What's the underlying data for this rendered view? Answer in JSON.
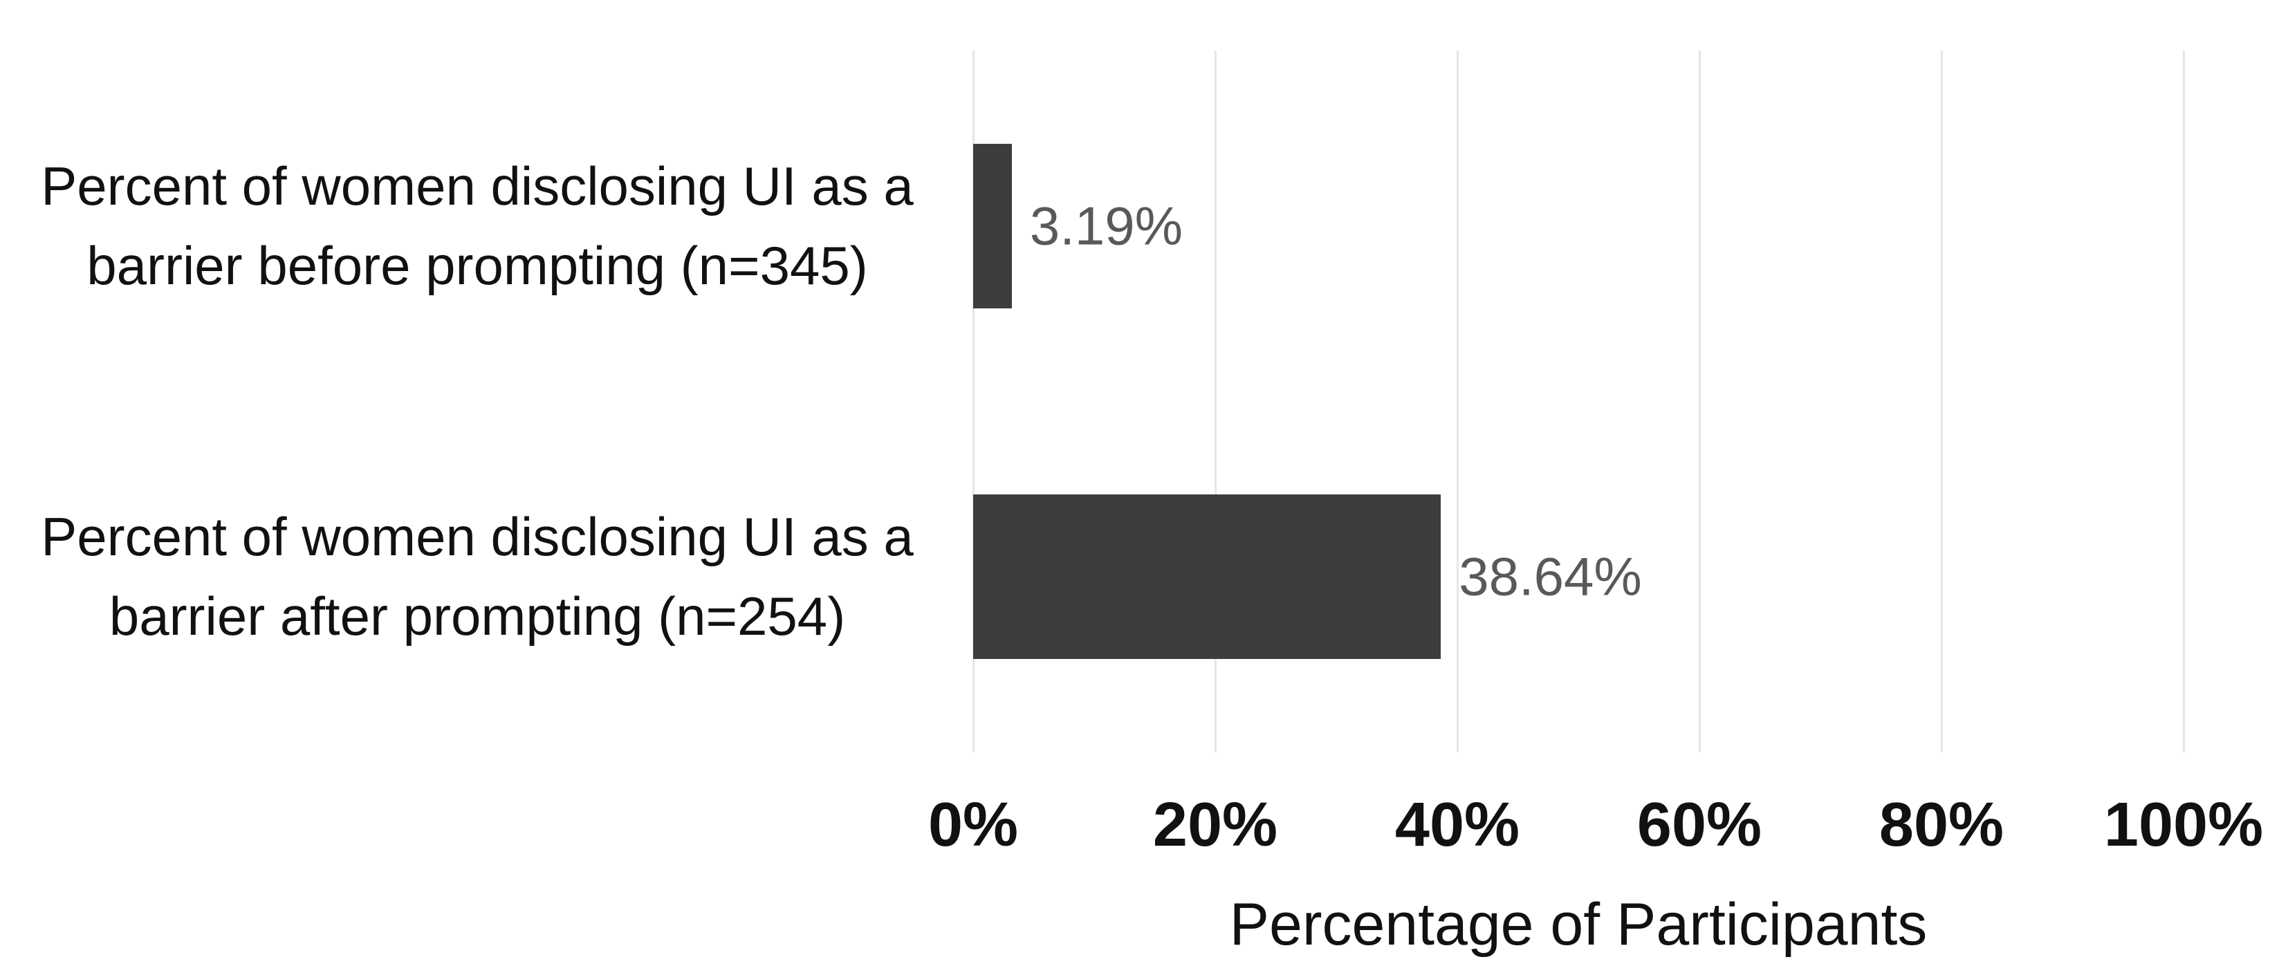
{
  "chart_data": {
    "type": "bar",
    "orientation": "horizontal",
    "title": "",
    "categories": [
      "Percent of women disclosing UI as a barrier before prompting (n=345)",
      "Percent of women disclosing UI as a barrier after prompting (n=254)"
    ],
    "category_label_lines": [
      [
        "Percent of women disclosing UI as a",
        "barrier before prompting (n=345)"
      ],
      [
        "Percent of women disclosing UI as a",
        "barrier after prompting (n=254)"
      ]
    ],
    "values": [
      3.19,
      38.64
    ],
    "data_labels": [
      "3.19%",
      "38.64%"
    ],
    "xlabel": "Percentage of Participants",
    "ylabel": "",
    "xlim": [
      0,
      100
    ],
    "x_ticks": [
      0,
      20,
      40,
      60,
      80,
      100
    ],
    "x_tick_labels": [
      "0%",
      "20%",
      "40%",
      "60%",
      "80%",
      "100%"
    ],
    "grid": "vertical-gridlines-only",
    "legend": "none",
    "colors": {
      "bar_fill": "#3d3d3d",
      "data_label": "#595959",
      "gridline": "#e6e6e6",
      "text": "#111111",
      "background": "#ffffff"
    }
  }
}
